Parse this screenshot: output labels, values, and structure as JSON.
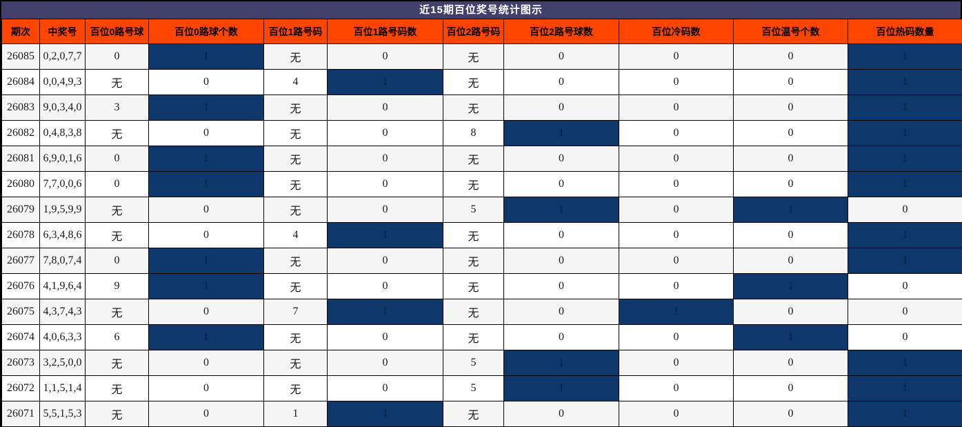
{
  "title": "近15期百位奖号统计图示",
  "colors": {
    "title_bg": "#40406A",
    "header_bg": "#FF4500",
    "highlight": "#0E386B",
    "row_odd": "#F5F5F5",
    "row_even": "#FFFFFF",
    "border": "#000000"
  },
  "chart_data": {
    "type": "table",
    "title": "近15期百位奖号统计图示",
    "columns": [
      "期次",
      "中奖号",
      "百位0路号球",
      "百位0路球个数",
      "百位1路号码",
      "百位1路号码数",
      "百位2路号码",
      "百位2路号球数",
      "百位冷码数",
      "百位温号个数",
      "百位热码数量"
    ],
    "highlight_meaning": "dark blue cell = count of 1",
    "rows": [
      {
        "cells": [
          {
            "v": "26085"
          },
          {
            "v": "0,2,0,7,7"
          },
          {
            "v": "0"
          },
          {
            "v": "1",
            "hl": true
          },
          {
            "v": "无"
          },
          {
            "v": "0"
          },
          {
            "v": "无"
          },
          {
            "v": "0"
          },
          {
            "v": "0"
          },
          {
            "v": "0"
          },
          {
            "v": "1",
            "hl": true
          }
        ]
      },
      {
        "cells": [
          {
            "v": "26084"
          },
          {
            "v": "0,0,4,9,3"
          },
          {
            "v": "无"
          },
          {
            "v": "0"
          },
          {
            "v": "4"
          },
          {
            "v": "1",
            "hl": true
          },
          {
            "v": "无"
          },
          {
            "v": "0"
          },
          {
            "v": "0"
          },
          {
            "v": "0"
          },
          {
            "v": "1",
            "hl": true
          }
        ]
      },
      {
        "cells": [
          {
            "v": "26083"
          },
          {
            "v": "9,0,3,4,0"
          },
          {
            "v": "3"
          },
          {
            "v": "1",
            "hl": true
          },
          {
            "v": "无"
          },
          {
            "v": "0"
          },
          {
            "v": "无"
          },
          {
            "v": "0"
          },
          {
            "v": "0"
          },
          {
            "v": "0"
          },
          {
            "v": "1",
            "hl": true
          }
        ]
      },
      {
        "cells": [
          {
            "v": "26082"
          },
          {
            "v": "0,4,8,3,8"
          },
          {
            "v": "无"
          },
          {
            "v": "0"
          },
          {
            "v": "无"
          },
          {
            "v": "0"
          },
          {
            "v": "8"
          },
          {
            "v": "1",
            "hl": true
          },
          {
            "v": "0"
          },
          {
            "v": "0"
          },
          {
            "v": "1",
            "hl": true
          }
        ]
      },
      {
        "cells": [
          {
            "v": "26081"
          },
          {
            "v": "6,9,0,1,6"
          },
          {
            "v": "0"
          },
          {
            "v": "1",
            "hl": true
          },
          {
            "v": "无"
          },
          {
            "v": "0"
          },
          {
            "v": "无"
          },
          {
            "v": "0"
          },
          {
            "v": "0"
          },
          {
            "v": "0"
          },
          {
            "v": "1",
            "hl": true
          }
        ]
      },
      {
        "cells": [
          {
            "v": "26080"
          },
          {
            "v": "7,7,0,0,6"
          },
          {
            "v": "0"
          },
          {
            "v": "1",
            "hl": true
          },
          {
            "v": "无"
          },
          {
            "v": "0"
          },
          {
            "v": "无"
          },
          {
            "v": "0"
          },
          {
            "v": "0"
          },
          {
            "v": "0"
          },
          {
            "v": "1",
            "hl": true
          }
        ]
      },
      {
        "cells": [
          {
            "v": "26079"
          },
          {
            "v": "1,9,5,9,9"
          },
          {
            "v": "无"
          },
          {
            "v": "0"
          },
          {
            "v": "无"
          },
          {
            "v": "0"
          },
          {
            "v": "5"
          },
          {
            "v": "1",
            "hl": true
          },
          {
            "v": "0"
          },
          {
            "v": "1",
            "hl": true
          },
          {
            "v": "0"
          }
        ]
      },
      {
        "cells": [
          {
            "v": "26078"
          },
          {
            "v": "6,3,4,8,6"
          },
          {
            "v": "无"
          },
          {
            "v": "0"
          },
          {
            "v": "4"
          },
          {
            "v": "1",
            "hl": true
          },
          {
            "v": "无"
          },
          {
            "v": "0"
          },
          {
            "v": "0"
          },
          {
            "v": "0"
          },
          {
            "v": "1",
            "hl": true
          }
        ]
      },
      {
        "cells": [
          {
            "v": "26077"
          },
          {
            "v": "7,8,0,7,4"
          },
          {
            "v": "0"
          },
          {
            "v": "1",
            "hl": true
          },
          {
            "v": "无"
          },
          {
            "v": "0"
          },
          {
            "v": "无"
          },
          {
            "v": "0"
          },
          {
            "v": "0"
          },
          {
            "v": "0"
          },
          {
            "v": "1",
            "hl": true
          }
        ]
      },
      {
        "cells": [
          {
            "v": "26076"
          },
          {
            "v": "4,1,9,6,4"
          },
          {
            "v": "9"
          },
          {
            "v": "1",
            "hl": true
          },
          {
            "v": "无"
          },
          {
            "v": "0"
          },
          {
            "v": "无"
          },
          {
            "v": "0"
          },
          {
            "v": "0"
          },
          {
            "v": "1",
            "hl": true
          },
          {
            "v": "0"
          }
        ]
      },
      {
        "cells": [
          {
            "v": "26075"
          },
          {
            "v": "4,3,7,4,3"
          },
          {
            "v": "无"
          },
          {
            "v": "0"
          },
          {
            "v": "7"
          },
          {
            "v": "1",
            "hl": true
          },
          {
            "v": "无"
          },
          {
            "v": "0"
          },
          {
            "v": "1",
            "hl": true
          },
          {
            "v": "0"
          },
          {
            "v": "0"
          }
        ]
      },
      {
        "cells": [
          {
            "v": "26074"
          },
          {
            "v": "4,0,6,3,3"
          },
          {
            "v": "6"
          },
          {
            "v": "1",
            "hl": true
          },
          {
            "v": "无"
          },
          {
            "v": "0"
          },
          {
            "v": "无"
          },
          {
            "v": "0"
          },
          {
            "v": "0"
          },
          {
            "v": "1",
            "hl": true
          },
          {
            "v": "0"
          }
        ]
      },
      {
        "cells": [
          {
            "v": "26073"
          },
          {
            "v": "3,2,5,0,0"
          },
          {
            "v": "无"
          },
          {
            "v": "0"
          },
          {
            "v": "无"
          },
          {
            "v": "0"
          },
          {
            "v": "5"
          },
          {
            "v": "1",
            "hl": true
          },
          {
            "v": "0"
          },
          {
            "v": "0"
          },
          {
            "v": "1",
            "hl": true
          }
        ]
      },
      {
        "cells": [
          {
            "v": "26072"
          },
          {
            "v": "1,1,5,1,4"
          },
          {
            "v": "无"
          },
          {
            "v": "0"
          },
          {
            "v": "无"
          },
          {
            "v": "0"
          },
          {
            "v": "5"
          },
          {
            "v": "1",
            "hl": true
          },
          {
            "v": "0"
          },
          {
            "v": "0"
          },
          {
            "v": "1",
            "hl": true
          }
        ]
      },
      {
        "cells": [
          {
            "v": "26071"
          },
          {
            "v": "5,5,1,5,3"
          },
          {
            "v": "无"
          },
          {
            "v": "0"
          },
          {
            "v": "1"
          },
          {
            "v": "1",
            "hl": true
          },
          {
            "v": "无"
          },
          {
            "v": "0"
          },
          {
            "v": "0"
          },
          {
            "v": "0"
          },
          {
            "v": "1",
            "hl": true
          }
        ]
      }
    ]
  }
}
